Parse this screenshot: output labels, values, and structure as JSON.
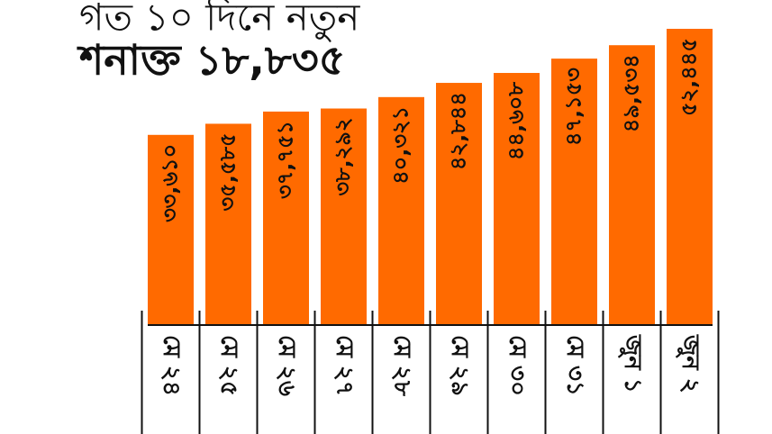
{
  "chart_data": {
    "type": "bar",
    "title": "গত ১০ দিনে নতুন",
    "subtitle": "শনাক্ত ১৮,৮৩৫",
    "categories": [
      "মে ২৪",
      "মে ২৫",
      "মে ২৬",
      "মে ২৭",
      "মে ২৮",
      "মে ২৯",
      "মে ৩০",
      "মে ৩১",
      "জুন ১",
      "জুন ২"
    ],
    "values": [
      33610,
      35585,
      37751,
      38292,
      40321,
      42844,
      44608,
      47153,
      49534,
      52445
    ],
    "value_labels": [
      "৩৩,৬১০",
      "৩৫,৫৮৫",
      "৩৭,৭৫১",
      "৩৮,২৯২",
      "৪০,৩২১",
      "৪২,৮৪৪",
      "৪৪,৬০৮",
      "৪৭,১৫৩",
      "৪৯,৫৩৪",
      "৫২,৪৪৫"
    ],
    "color": "#ff6a00"
  }
}
